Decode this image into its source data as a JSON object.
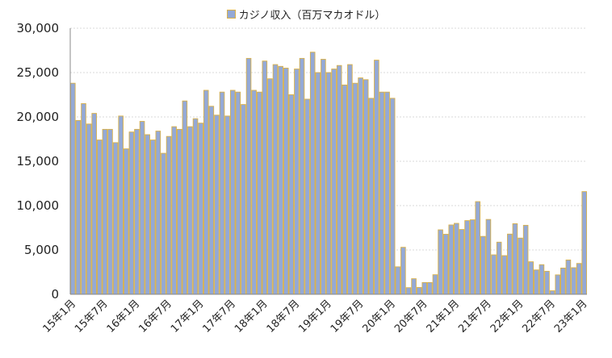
{
  "chart_data": {
    "type": "bar",
    "legend": {
      "label": "カジノ収入（百万マカオドル）",
      "position": "top"
    },
    "bar_fill": "#94a9d6",
    "bar_stroke": "#d9b14a",
    "axis_color": "#888888",
    "grid_color": "#d9d9d9",
    "grid": true,
    "ylim": [
      0,
      30000
    ],
    "y_ticks": [
      "0",
      "5,000",
      "10,000",
      "15,000",
      "20,000",
      "25,000",
      "30,000"
    ],
    "y_tick_values": [
      0,
      5000,
      10000,
      15000,
      20000,
      25000,
      30000
    ],
    "x_labels": [
      {
        "index": 0,
        "label": "15年1月"
      },
      {
        "index": 6,
        "label": "15年7月"
      },
      {
        "index": 12,
        "label": "16年1月"
      },
      {
        "index": 18,
        "label": "16年7月"
      },
      {
        "index": 24,
        "label": "17年1月"
      },
      {
        "index": 30,
        "label": "17年7月"
      },
      {
        "index": 36,
        "label": "18年1月"
      },
      {
        "index": 42,
        "label": "18年7月"
      },
      {
        "index": 48,
        "label": "19年1月"
      },
      {
        "index": 54,
        "label": "19年7月"
      },
      {
        "index": 60,
        "label": "20年1月"
      },
      {
        "index": 66,
        "label": "20年7月"
      },
      {
        "index": 72,
        "label": "21年1月"
      },
      {
        "index": 78,
        "label": "21年7月"
      },
      {
        "index": 84,
        "label": "22年1月"
      },
      {
        "index": 90,
        "label": "22年7月"
      },
      {
        "index": 96,
        "label": "23年1月"
      }
    ],
    "values": [
      23800,
      19600,
      21500,
      19200,
      20400,
      17400,
      18600,
      18600,
      17100,
      20100,
      16400,
      18300,
      18600,
      19500,
      18000,
      17400,
      18400,
      15900,
      17800,
      18900,
      18600,
      21800,
      18900,
      19800,
      19300,
      23000,
      21200,
      20200,
      22800,
      20100,
      23000,
      22800,
      21400,
      26600,
      23000,
      22800,
      26300,
      24300,
      25900,
      25700,
      25500,
      22500,
      25400,
      26600,
      22000,
      27300,
      25000,
      26500,
      25000,
      25400,
      25800,
      23600,
      25900,
      23800,
      24400,
      24200,
      22100,
      26400,
      22800,
      22800,
      22100,
      3100,
      5300,
      750,
      1760,
      770,
      1330,
      1330,
      2210,
      7270,
      6770,
      7820,
      8000,
      7310,
      8310,
      8400,
      10450,
      6530,
      8440,
      4450,
      5880,
      4360,
      6790,
      7960,
      6340,
      7780,
      3670,
      2750,
      3340,
      2600,
      400,
      2190,
      2960,
      3870,
      3000,
      3480,
      11580
    ]
  }
}
